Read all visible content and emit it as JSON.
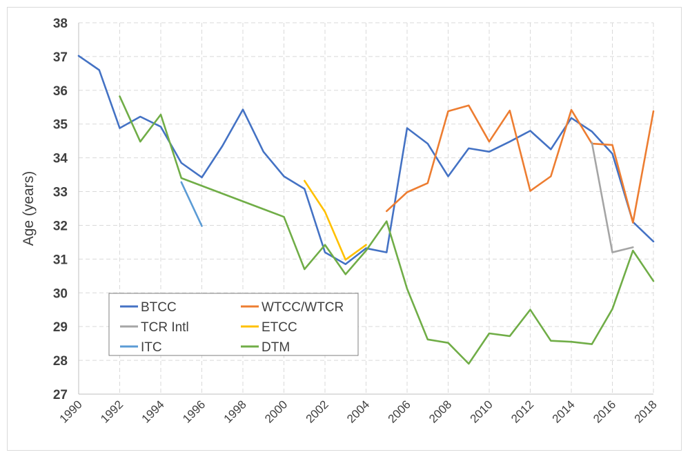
{
  "chart_data": {
    "type": "line",
    "title": "",
    "xlabel": "",
    "ylabel": "Age (years)",
    "xlim": [
      1990,
      2018
    ],
    "ylim": [
      27,
      38
    ],
    "yticks": [
      "27",
      "28",
      "29",
      "30",
      "31",
      "32",
      "33",
      "34",
      "35",
      "36",
      "37",
      "38"
    ],
    "xticks": [
      "1990",
      "1992",
      "1994",
      "1996",
      "1998",
      "2000",
      "2002",
      "2004",
      "2006",
      "2008",
      "2010",
      "2012",
      "2014",
      "2016",
      "2018"
    ],
    "grid": "dashed-both",
    "legend_placement": "bottom-left",
    "series": [
      {
        "name": "BTCC",
        "color": "#4472C4",
        "x": [
          1990,
          1991,
          1992,
          1993,
          1994,
          1995,
          1996,
          1997,
          1998,
          1999,
          2000,
          2001,
          2002,
          2003,
          2004,
          2005,
          2006,
          2007,
          2008,
          2009,
          2010,
          2011,
          2012,
          2013,
          2014,
          2015,
          2016,
          2017,
          2018
        ],
        "y": [
          37.02,
          36.6,
          34.88,
          35.22,
          34.92,
          33.85,
          33.42,
          34.35,
          35.43,
          34.18,
          33.45,
          33.08,
          31.2,
          30.85,
          31.32,
          31.2,
          34.88,
          34.42,
          33.45,
          34.28,
          34.18,
          34.48,
          34.8,
          34.25,
          35.18,
          34.78,
          34.12,
          32.1,
          31.52
        ]
      },
      {
        "name": "WTCC/WTCR",
        "color": "#ED7D31",
        "x": [
          2005,
          2006,
          2007,
          2008,
          2009,
          2010,
          2011,
          2012,
          2013,
          2014,
          2015,
          2016,
          2017,
          2018
        ],
        "y": [
          32.42,
          32.98,
          33.25,
          35.38,
          35.55,
          34.48,
          35.4,
          33.02,
          33.45,
          35.42,
          34.42,
          34.38,
          32.08,
          35.38
        ]
      },
      {
        "name": "TCR Intl",
        "color": "#A5A5A5",
        "x": [
          2015,
          2016,
          2017
        ],
        "y": [
          34.45,
          31.2,
          31.35
        ]
      },
      {
        "name": "ETCC",
        "color": "#FFC000",
        "x": [
          2001,
          2002,
          2003,
          2004
        ],
        "y": [
          33.32,
          32.4,
          30.98,
          31.42
        ]
      },
      {
        "name": "ITC",
        "color": "#5B9BD5",
        "x": [
          1995,
          1996
        ],
        "y": [
          33.28,
          31.98
        ]
      },
      {
        "name": "DTM",
        "color": "#70AD47",
        "x": [
          1992,
          1993,
          1994,
          1995,
          2000,
          2001,
          2002,
          2003,
          2004,
          2005,
          2006,
          2007,
          2008,
          2009,
          2010,
          2011,
          2012,
          2013,
          2014,
          2015,
          2016,
          2017,
          2018
        ],
        "y": [
          35.82,
          34.48,
          35.28,
          33.4,
          32.25,
          30.7,
          31.42,
          30.55,
          31.25,
          32.12,
          30.12,
          28.62,
          28.52,
          27.9,
          28.8,
          28.72,
          29.5,
          28.58,
          28.55,
          28.48,
          29.52,
          31.25,
          30.35
        ]
      }
    ]
  }
}
